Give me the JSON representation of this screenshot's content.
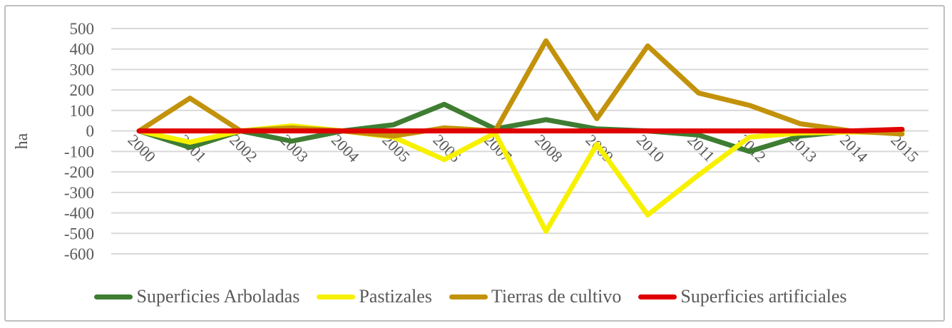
{
  "chart_data": {
    "type": "line",
    "title": "",
    "xlabel": "",
    "ylabel": "ha",
    "categories": [
      "2000",
      "2001",
      "2002",
      "2003",
      "2004",
      "2005",
      "2006",
      "2007",
      "2008",
      "2009",
      "2010",
      "2011",
      "2012",
      "2013",
      "2014",
      "2015"
    ],
    "y_ticks": [
      500,
      400,
      300,
      200,
      100,
      0,
      -100,
      -200,
      -300,
      -400,
      -500,
      -600
    ],
    "ylim": [
      -600,
      500
    ],
    "grid": true,
    "legend_position": "bottom",
    "axis_text_color": "#595959",
    "gridline_color": "#D9D9D9",
    "frame_border_color": "#BFBFBF",
    "series": [
      {
        "name": "Superficies Arboladas",
        "color": "#3E7D32",
        "values": [
          0,
          -80,
          0,
          -50,
          0,
          30,
          130,
          10,
          55,
          10,
          0,
          -20,
          -100,
          -25,
          0,
          0
        ]
      },
      {
        "name": "Pastizales",
        "color": "#F7F100",
        "values": [
          0,
          -55,
          0,
          25,
          0,
          -30,
          -140,
          -10,
          -490,
          -65,
          -410,
          -215,
          -30,
          -10,
          -5,
          -10
        ]
      },
      {
        "name": "Tierras de cultivo",
        "color": "#C3920B",
        "values": [
          0,
          160,
          0,
          15,
          0,
          -25,
          15,
          0,
          440,
          60,
          415,
          185,
          125,
          35,
          0,
          -15
        ]
      },
      {
        "name": "Superficies artificiales",
        "color": "#E00000",
        "values": [
          0,
          0,
          0,
          0,
          0,
          0,
          0,
          0,
          0,
          0,
          0,
          0,
          0,
          0,
          0,
          8
        ]
      }
    ]
  }
}
